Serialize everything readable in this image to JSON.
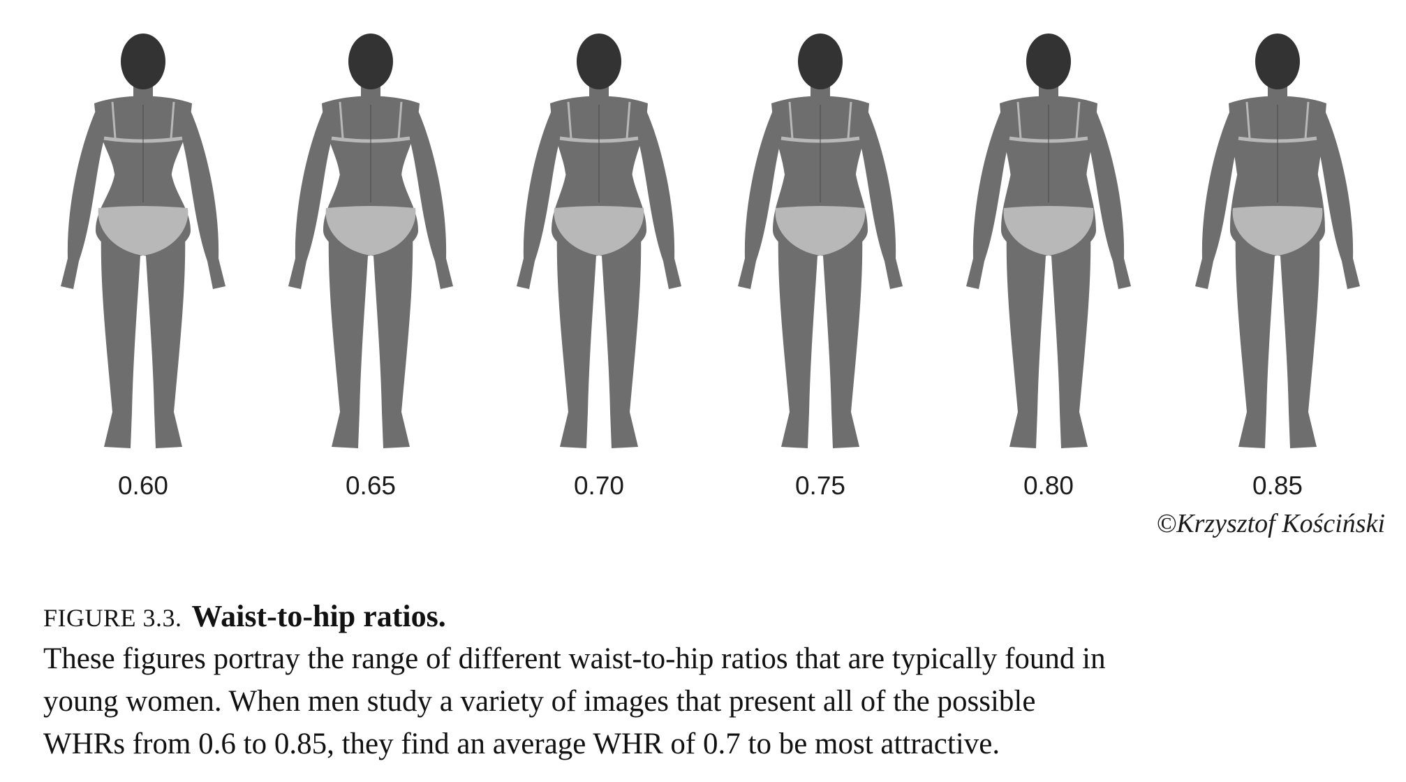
{
  "figures": [
    {
      "ratio_label": "0.60",
      "whr": 0.6
    },
    {
      "ratio_label": "0.65",
      "whr": 0.65
    },
    {
      "ratio_label": "0.70",
      "whr": 0.7
    },
    {
      "ratio_label": "0.75",
      "whr": 0.75
    },
    {
      "ratio_label": "0.80",
      "whr": 0.8
    },
    {
      "ratio_label": "0.85",
      "whr": 0.85
    }
  ],
  "credit": "©Krzysztof Kościński",
  "caption": {
    "figure_number": "FIGURE 3.3.",
    "title": "Waist-to-hip ratios.",
    "lines": [
      "These figures portray the range of different waist-to-hip ratios that are typically found in",
      "young women. When men study a variety of images that present all of the possible",
      "WHRs from 0.6 to 0.85, they find an average WHR of 0.7 to be most attractive."
    ]
  },
  "colors": {
    "skin": "#6e6e6e",
    "skin_dark": "#4a4a4a",
    "hair": "#333333",
    "underwear": "#b8b8b8"
  }
}
